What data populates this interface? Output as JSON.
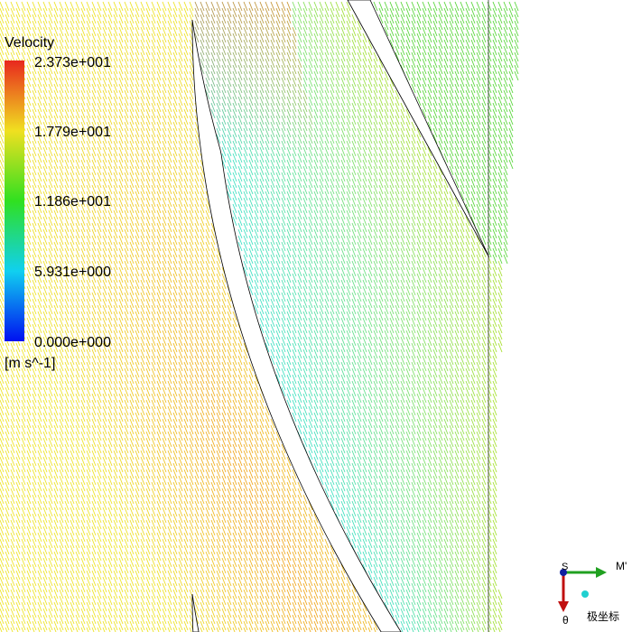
{
  "legend": {
    "title": "Velocity",
    "labels": [
      "2.373e+001",
      "1.779e+001",
      "1.186e+001",
      "5.931e+000",
      "0.000e+000"
    ],
    "unit": "[m s^-1]"
  },
  "axes": {
    "s": "S",
    "m": "M'",
    "theta": "θ",
    "caption": "极坐标"
  }
}
